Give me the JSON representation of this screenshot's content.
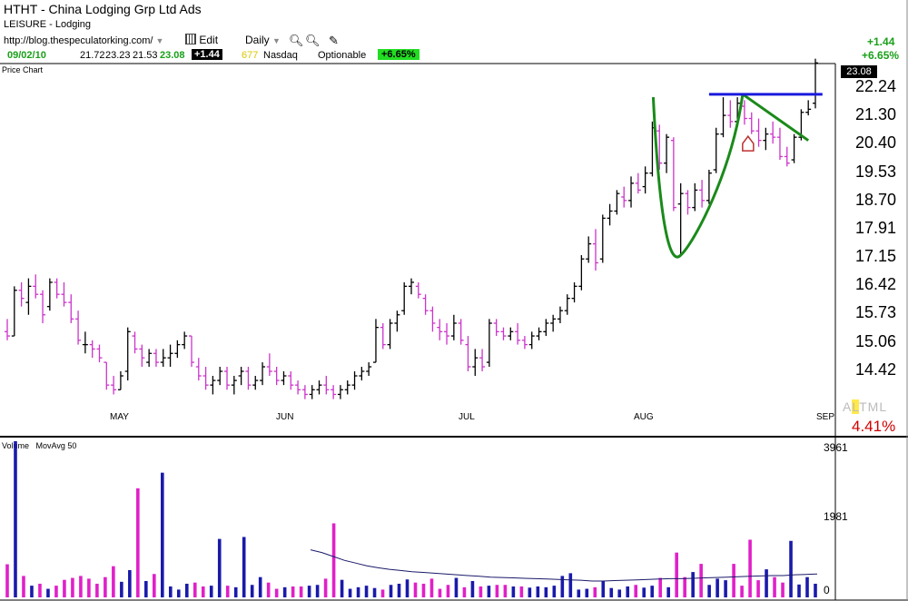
{
  "header": {
    "title": "HTHT - China Lodging Grp Ltd Ads",
    "sector": "LEISURE - Lodging",
    "url": "http://blog.thespeculatorking.com/",
    "edit_label": "Edit",
    "period_label": "Daily"
  },
  "quote": {
    "date": "09/02/10",
    "open": "21.72",
    "high": "23.23",
    "low": "21.53",
    "close": "23.08",
    "change": "+1.44",
    "rank": "677",
    "exchange": "Nasdaq",
    "optionable": "Optionable",
    "change_pct": "+6.65%"
  },
  "right_panel": {
    "change": "+1.44",
    "change_pct": "+6.65%",
    "last": "23.08",
    "altml": [
      "A",
      "L",
      "T",
      "M",
      "L"
    ],
    "pct": "4.41%"
  },
  "colors": {
    "up": "#000000",
    "down": "#cc33cc",
    "vol_up": "#1a1aaa",
    "vol_down": "#e020c8",
    "pattern": "#1a8a1a",
    "pivot": "#1a1add",
    "movavg": "#1a1a6a",
    "positive": "#1aa01a"
  },
  "chart_data": [
    {
      "type": "candlestick",
      "title": "Price Chart",
      "y_ticks": [
        "22.24",
        "21.30",
        "20.40",
        "19.53",
        "18.70",
        "17.91",
        "17.15",
        "16.42",
        "15.73",
        "15.06",
        "14.42"
      ],
      "x_ticks": [
        "MAY",
        "JUN",
        "JUL",
        "AUG",
        "SEP"
      ],
      "ylim": [
        13.9,
        23.4
      ],
      "scale": "log",
      "bars": [
        [
          0,
          15.3,
          15.6,
          15.1,
          15.2
        ],
        [
          1,
          15.2,
          16.4,
          15.2,
          16.3
        ],
        [
          2,
          16.3,
          16.5,
          15.9,
          16.1
        ],
        [
          3,
          16.0,
          16.6,
          15.7,
          16.4
        ],
        [
          4,
          16.4,
          16.7,
          16.1,
          16.2
        ],
        [
          5,
          16.2,
          16.3,
          15.5,
          15.7
        ],
        [
          6,
          15.9,
          16.6,
          15.8,
          16.5
        ],
        [
          7,
          16.5,
          16.6,
          16.1,
          16.2
        ],
        [
          8,
          16.2,
          16.5,
          15.9,
          16.0
        ],
        [
          9,
          16.0,
          16.2,
          15.5,
          15.6
        ],
        [
          10,
          15.6,
          15.8,
          15.0,
          15.1
        ],
        [
          11,
          15.0,
          15.3,
          14.8,
          15.0
        ],
        [
          12,
          15.0,
          15.1,
          14.7,
          14.9
        ],
        [
          13,
          14.9,
          15.0,
          14.6,
          14.7
        ],
        [
          14,
          14.6,
          14.6,
          14.0,
          14.1
        ],
        [
          15,
          14.1,
          14.3,
          13.9,
          14.0
        ],
        [
          16,
          14.0,
          14.4,
          14.0,
          14.3
        ],
        [
          17,
          14.4,
          15.4,
          14.2,
          15.3
        ],
        [
          18,
          15.2,
          15.3,
          14.8,
          14.9
        ],
        [
          19,
          14.9,
          15.0,
          14.5,
          14.7
        ],
        [
          20,
          14.6,
          14.9,
          14.5,
          14.8
        ],
        [
          21,
          14.8,
          14.9,
          14.5,
          14.6
        ],
        [
          22,
          14.6,
          14.9,
          14.5,
          14.7
        ],
        [
          23,
          14.7,
          15.0,
          14.5,
          14.8
        ],
        [
          24,
          14.8,
          15.1,
          14.7,
          15.0
        ],
        [
          25,
          15.0,
          15.3,
          14.9,
          15.2
        ],
        [
          26,
          15.2,
          15.2,
          14.5,
          14.6
        ],
        [
          27,
          14.5,
          14.7,
          14.2,
          14.3
        ],
        [
          28,
          14.3,
          14.5,
          14.0,
          14.1
        ],
        [
          29,
          14.1,
          14.3,
          13.9,
          14.2
        ],
        [
          30,
          14.2,
          14.5,
          14.1,
          14.4
        ],
        [
          31,
          14.4,
          14.5,
          14.0,
          14.1
        ],
        [
          32,
          14.1,
          14.3,
          13.9,
          14.2
        ],
        [
          33,
          14.3,
          14.5,
          14.1,
          14.4
        ],
        [
          34,
          14.4,
          14.5,
          14.0,
          14.1
        ],
        [
          35,
          14.1,
          14.3,
          14.0,
          14.2
        ],
        [
          36,
          14.2,
          14.6,
          14.1,
          14.5
        ],
        [
          37,
          14.5,
          14.8,
          14.3,
          14.4
        ],
        [
          38,
          14.4,
          14.5,
          14.1,
          14.2
        ],
        [
          39,
          14.2,
          14.4,
          14.1,
          14.3
        ],
        [
          40,
          14.3,
          14.4,
          14.0,
          14.1
        ],
        [
          41,
          14.1,
          14.2,
          13.9,
          14.0
        ],
        [
          42,
          14.0,
          14.1,
          13.8,
          13.9
        ],
        [
          43,
          13.9,
          14.1,
          13.8,
          14.0
        ],
        [
          44,
          14.0,
          14.2,
          13.9,
          14.1
        ],
        [
          45,
          14.1,
          14.3,
          13.9,
          14.0
        ],
        [
          46,
          14.0,
          14.1,
          13.8,
          13.9
        ],
        [
          47,
          13.9,
          14.1,
          13.8,
          14.0
        ],
        [
          48,
          14.0,
          14.2,
          13.9,
          14.1
        ],
        [
          49,
          14.1,
          14.4,
          14.0,
          14.3
        ],
        [
          50,
          14.3,
          14.5,
          14.2,
          14.4
        ],
        [
          51,
          14.4,
          14.6,
          14.3,
          14.5
        ],
        [
          52,
          14.6,
          15.6,
          14.6,
          15.4
        ],
        [
          53,
          15.4,
          15.5,
          14.9,
          15.0
        ],
        [
          54,
          15.0,
          15.6,
          14.9,
          15.5
        ],
        [
          55,
          15.5,
          15.8,
          15.3,
          15.7
        ],
        [
          56,
          15.8,
          16.5,
          15.7,
          16.4
        ],
        [
          57,
          16.4,
          16.6,
          16.2,
          16.5
        ],
        [
          58,
          16.4,
          16.5,
          16.1,
          16.2
        ],
        [
          59,
          16.1,
          16.2,
          15.7,
          15.8
        ],
        [
          60,
          15.8,
          15.9,
          15.3,
          15.5
        ],
        [
          61,
          15.4,
          15.6,
          15.1,
          15.3
        ],
        [
          62,
          15.3,
          15.5,
          15.0,
          15.2
        ],
        [
          63,
          15.2,
          15.7,
          15.1,
          15.5
        ],
        [
          64,
          15.5,
          15.6,
          15.0,
          15.1
        ],
        [
          65,
          15.0,
          15.2,
          14.4,
          14.5
        ],
        [
          66,
          14.5,
          14.9,
          14.3,
          14.7
        ],
        [
          67,
          14.7,
          14.9,
          14.4,
          14.5
        ],
        [
          68,
          14.6,
          15.6,
          14.5,
          15.5
        ],
        [
          69,
          15.5,
          15.6,
          15.2,
          15.3
        ],
        [
          70,
          15.3,
          15.4,
          15.1,
          15.2
        ],
        [
          71,
          15.2,
          15.4,
          15.1,
          15.3
        ],
        [
          72,
          15.3,
          15.5,
          15.0,
          15.1
        ],
        [
          73,
          15.1,
          15.2,
          14.9,
          15.0
        ],
        [
          74,
          15.0,
          15.3,
          14.9,
          15.2
        ],
        [
          75,
          15.2,
          15.4,
          15.1,
          15.3
        ],
        [
          76,
          15.3,
          15.6,
          15.2,
          15.5
        ],
        [
          77,
          15.5,
          15.7,
          15.3,
          15.6
        ],
        [
          78,
          15.6,
          15.9,
          15.5,
          15.8
        ],
        [
          79,
          15.8,
          16.2,
          15.7,
          16.1
        ],
        [
          80,
          16.1,
          16.5,
          16.0,
          16.4
        ],
        [
          81,
          16.4,
          17.2,
          16.3,
          17.1
        ],
        [
          82,
          17.1,
          17.7,
          17.0,
          17.5
        ],
        [
          83,
          17.5,
          17.9,
          16.8,
          17.0
        ],
        [
          84,
          17.1,
          18.3,
          17.0,
          18.2
        ],
        [
          85,
          18.2,
          18.6,
          18.0,
          18.4
        ],
        [
          86,
          18.4,
          19.0,
          18.3,
          18.9
        ],
        [
          87,
          18.8,
          19.1,
          18.5,
          18.7
        ],
        [
          88,
          18.7,
          19.4,
          18.5,
          19.2
        ],
        [
          89,
          19.2,
          19.5,
          18.9,
          19.0
        ],
        [
          90,
          19.1,
          19.7,
          18.9,
          19.5
        ],
        [
          91,
          19.5,
          21.1,
          19.4,
          20.9
        ],
        [
          92,
          20.8,
          21.0,
          19.6,
          19.8
        ],
        [
          93,
          19.8,
          20.7,
          19.5,
          20.6
        ],
        [
          94,
          20.5,
          20.6,
          18.4,
          18.5
        ],
        [
          95,
          18.6,
          19.2,
          17.2,
          18.9
        ],
        [
          96,
          18.9,
          19.0,
          18.3,
          18.5
        ],
        [
          97,
          18.5,
          19.2,
          18.4,
          19.0
        ],
        [
          98,
          19.0,
          19.3,
          18.5,
          18.7
        ],
        [
          99,
          18.7,
          19.6,
          18.6,
          19.5
        ],
        [
          100,
          19.6,
          20.9,
          19.5,
          20.7
        ],
        [
          101,
          20.7,
          21.9,
          20.6,
          21.3
        ],
        [
          102,
          21.3,
          21.8,
          20.9,
          21.1
        ],
        [
          103,
          21.1,
          21.9,
          21.0,
          21.7
        ],
        [
          104,
          21.6,
          21.8,
          21.0,
          21.2
        ],
        [
          105,
          21.2,
          21.4,
          20.7,
          20.8
        ],
        [
          106,
          20.8,
          21.2,
          20.3,
          20.5
        ],
        [
          107,
          20.5,
          20.9,
          20.2,
          20.7
        ],
        [
          108,
          20.7,
          21.1,
          20.4,
          20.6
        ],
        [
          109,
          20.6,
          20.9,
          19.9,
          20.0
        ],
        [
          110,
          20.0,
          20.3,
          19.7,
          19.8
        ],
        [
          111,
          19.9,
          20.7,
          19.8,
          20.6
        ],
        [
          112,
          20.6,
          21.5,
          20.5,
          21.4
        ],
        [
          113,
          21.4,
          21.8,
          21.3,
          21.5
        ],
        [
          114,
          21.7,
          23.23,
          21.53,
          23.08
        ]
      ],
      "annotations": [
        "cup-with-handle",
        "pivot-line"
      ]
    },
    {
      "type": "bar",
      "title": "Volume",
      "legend": [
        "Volume",
        "MovAvg 50"
      ],
      "y_ticks": [
        "3961",
        "1981",
        "0"
      ],
      "ylim": [
        0,
        3961
      ],
      "values": [
        850,
        4100,
        550,
        300,
        350,
        220,
        300,
        450,
        500,
        550,
        480,
        350,
        520,
        800,
        400,
        700,
        2800,
        420,
        600,
        3200,
        280,
        200,
        350,
        380,
        280,
        300,
        1500,
        300,
        260,
        1550,
        320,
        520,
        380,
        220,
        260,
        280,
        280,
        300,
        320,
        480,
        1900,
        450,
        220,
        260,
        300,
        240,
        200,
        320,
        350,
        460,
        380,
        350,
        480,
        220,
        320,
        500,
        260,
        420,
        280,
        300,
        320,
        320,
        280,
        280,
        250,
        280,
        260,
        300,
        550,
        620,
        200,
        220,
        260,
        420,
        240,
        200,
        280,
        320,
        250,
        300,
        500,
        260,
        1150,
        520,
        650,
        860,
        320,
        480,
        440,
        860,
        300,
        1480,
        440,
        720,
        520,
        380,
        1450,
        330,
        520,
        350
      ],
      "movavg": [
        1220,
        1150,
        1050,
        950,
        880,
        810,
        760,
        720,
        690,
        660,
        640,
        620,
        600,
        580,
        560,
        540,
        520,
        510,
        500,
        490,
        480,
        470,
        460,
        450,
        440,
        420,
        420,
        430,
        440,
        450,
        460,
        470,
        480,
        480,
        490,
        500,
        510,
        520,
        530,
        540,
        550,
        560,
        560,
        580,
        590,
        600
      ]
    }
  ]
}
